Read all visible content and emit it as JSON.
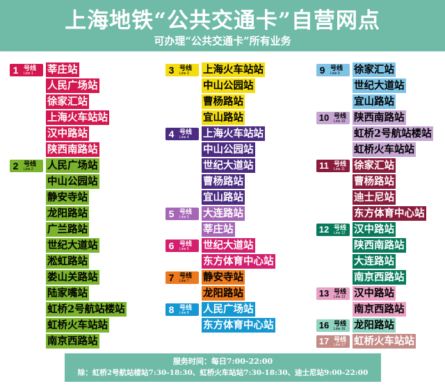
{
  "header": {
    "title": "上海地铁“公共交通卡”自营网点",
    "subtitle": "可办理“公共交通卡”所有业务"
  },
  "columns": [
    {
      "lines": [
        {
          "num": "1",
          "zh": "号线",
          "en": "Line 1",
          "color": "#d4174f",
          "text_color": "#ffffff",
          "stations": [
            "莘庄站",
            "人民广场站",
            "徐家汇站",
            "上海火车站站",
            "汉中路站",
            "陕西南路站"
          ]
        },
        {
          "num": "2",
          "zh": "号线",
          "en": "Line 2",
          "color": "#7ab32c",
          "text_color": "#000000",
          "stations": [
            "人民广场站",
            "中山公园站",
            "静安寺站",
            "龙阳路站",
            "广兰路站",
            "世纪大道站",
            "淞虹路站",
            "娄山关路站",
            "陆家嘴站",
            "虹桥2号航站楼站",
            "虹桥火车站站",
            "南京西路站"
          ]
        }
      ]
    },
    {
      "lines": [
        {
          "num": "3",
          "zh": "号线",
          "en": "Line 3",
          "color": "#f4dc0f",
          "text_color": "#000000",
          "stations": [
            "上海火车站站",
            "中山公园站",
            "曹杨路站",
            "宜山路站"
          ]
        },
        {
          "num": "4",
          "zh": "号线",
          "en": "Line 4",
          "color": "#4c2b82",
          "text_color": "#ffffff",
          "stations": [
            "上海火车站站",
            "中山公园站",
            "世纪大道站",
            "曹杨路站",
            "宜山路站"
          ]
        },
        {
          "num": "5",
          "zh": "号线",
          "en": "Line 5",
          "color": "#a566b6",
          "text_color": "#ffffff",
          "stations": [
            "大连路站",
            "莘庄站"
          ]
        },
        {
          "num": "6",
          "zh": "号线",
          "en": "Line 6",
          "color": "#d41f6e",
          "text_color": "#ffffff",
          "stations": [
            "世纪大道站",
            "东方体育中心站"
          ]
        },
        {
          "num": "7",
          "zh": "号线",
          "en": "Line 7",
          "color": "#ec7a1c",
          "text_color": "#000000",
          "stations": [
            "静安寺站",
            "龙阳路站"
          ]
        },
        {
          "num": "8",
          "zh": "号线",
          "en": "Line 8",
          "color": "#1597d2",
          "text_color": "#ffffff",
          "stations": [
            "人民广场站",
            "东方体育中心站"
          ]
        }
      ]
    },
    {
      "lines": [
        {
          "num": "9",
          "zh": "号线",
          "en": "Line 9",
          "color": "#7ec3e6",
          "text_color": "#000000",
          "stations": [
            "徐家汇站",
            "世纪大道站",
            "宜山路站"
          ]
        },
        {
          "num": "10",
          "zh": "号线",
          "en": "Line 10",
          "color": "#c5a6d2",
          "text_color": "#000000",
          "stations": [
            "陕西南路站",
            "虹桥2号航站楼站",
            "虹桥火车站站"
          ]
        },
        {
          "num": "11",
          "zh": "号线",
          "en": "Line 11",
          "color": "#8a1b3c",
          "text_color": "#ffffff",
          "stations": [
            "徐家汇站",
            "曹杨路站",
            "迪士尼站",
            "东方体育中心站"
          ]
        },
        {
          "num": "12",
          "zh": "号线",
          "en": "Line 12",
          "color": "#077a5b",
          "text_color": "#ffffff",
          "stations": [
            "汉中路站",
            "陕西南路站",
            "大连路站",
            "南京西路站"
          ]
        },
        {
          "num": "13",
          "zh": "号线",
          "en": "Line 13",
          "color": "#e8a0c4",
          "text_color": "#000000",
          "stations": [
            "汉中路站",
            "南京西路站"
          ]
        },
        {
          "num": "16",
          "zh": "号线",
          "en": "Line 16",
          "color": "#8fd3c0",
          "text_color": "#000000",
          "stations": [
            "龙阳路站"
          ]
        },
        {
          "num": "17",
          "zh": "号线",
          "en": "Line 17",
          "color": "#c48a86",
          "text_color": "#ffffff",
          "stations": [
            "虹桥火车站站"
          ]
        }
      ]
    }
  ],
  "footer": {
    "line1": "服务时间：每日7:00-22:00",
    "line2": "除：虹桥2号航站楼站7:30-18:30、虹桥火车站站7:30-18:30、迪士尼站9:00-22:00"
  }
}
